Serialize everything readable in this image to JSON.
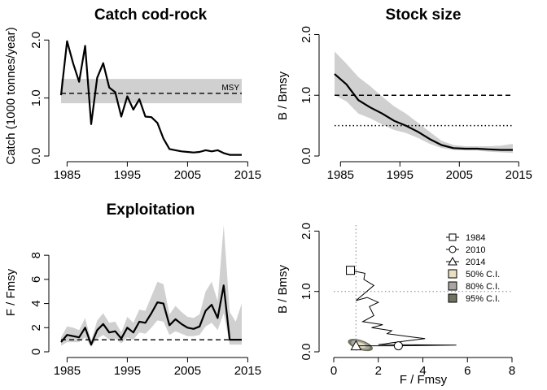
{
  "chart_data": [
    {
      "id": "catch",
      "type": "line",
      "title": "Catch cod-rock",
      "xlabel": "",
      "ylabel": "Catch (1000 tonnes/year)",
      "xlim": [
        1984,
        2014
      ],
      "ylim": [
        0,
        2.2
      ],
      "xticks": [
        "1985",
        "1995",
        "2005",
        "2015"
      ],
      "yticks": [
        "0.0",
        "1.0",
        "2.0"
      ],
      "x": [
        1984,
        1985,
        1986,
        1987,
        1988,
        1989,
        1990,
        1991,
        1992,
        1993,
        1994,
        1995,
        1996,
        1997,
        1998,
        1999,
        2000,
        2001,
        2002,
        2003,
        2004,
        2005,
        2006,
        2007,
        2008,
        2009,
        2010,
        2011,
        2012,
        2013,
        2014
      ],
      "y": [
        1.05,
        1.98,
        1.6,
        1.28,
        1.9,
        0.55,
        1.35,
        1.6,
        1.18,
        1.1,
        0.68,
        1.03,
        0.8,
        0.98,
        0.68,
        0.67,
        0.57,
        0.3,
        0.12,
        0.1,
        0.08,
        0.07,
        0.06,
        0.07,
        0.1,
        0.08,
        0.1,
        0.05,
        0.02,
        0.02,
        0.02
      ],
      "band": {
        "lo": 0.91,
        "hi": 1.33
      },
      "ref_line": {
        "y": 1.08,
        "label": "MSY"
      }
    },
    {
      "id": "stock",
      "type": "line",
      "title": "Stock size",
      "xlabel": "",
      "ylabel": "B / Bmsy",
      "xlim": [
        1984,
        2014
      ],
      "ylim": [
        0,
        2.1
      ],
      "xticks": [
        "1985",
        "1995",
        "2005",
        "2015"
      ],
      "yticks": [
        "0.0",
        "1.0",
        "2.0"
      ],
      "x": [
        1984,
        1986,
        1988,
        1990,
        1992,
        1994,
        1996,
        1998,
        2000,
        2002,
        2004,
        2006,
        2008,
        2010,
        2012,
        2014
      ],
      "y": [
        1.35,
        1.18,
        0.92,
        0.8,
        0.7,
        0.58,
        0.5,
        0.4,
        0.28,
        0.18,
        0.13,
        0.12,
        0.12,
        0.11,
        0.1,
        0.1
      ],
      "ci_lo": [
        1.0,
        0.9,
        0.7,
        0.62,
        0.52,
        0.43,
        0.38,
        0.3,
        0.2,
        0.13,
        0.1,
        0.09,
        0.09,
        0.07,
        0.06,
        0.05
      ],
      "ci_hi": [
        1.72,
        1.52,
        1.3,
        1.15,
        0.98,
        0.82,
        0.7,
        0.55,
        0.4,
        0.25,
        0.18,
        0.16,
        0.16,
        0.16,
        0.17,
        0.2
      ],
      "ref_lines": [
        {
          "y": 1.0,
          "style": "dashed"
        },
        {
          "y": 0.5,
          "style": "dotted"
        }
      ]
    },
    {
      "id": "exploitation",
      "type": "line",
      "title": "Exploitation",
      "xlabel": "",
      "ylabel": "F / Fmsy",
      "xlim": [
        1984,
        2014
      ],
      "ylim": [
        0,
        10.5
      ],
      "xticks": [
        "1985",
        "1995",
        "2005",
        "2015"
      ],
      "yticks": [
        "0",
        "2",
        "4",
        "6",
        "8"
      ],
      "x": [
        1984,
        1985,
        1986,
        1987,
        1988,
        1989,
        1990,
        1991,
        1992,
        1993,
        1994,
        1995,
        1996,
        1997,
        1998,
        1999,
        2000,
        2001,
        2002,
        2003,
        2004,
        2005,
        2006,
        2007,
        2008,
        2009,
        2010,
        2011,
        2012,
        2013,
        2014
      ],
      "y": [
        0.8,
        1.4,
        1.3,
        1.2,
        2.0,
        0.6,
        1.8,
        2.3,
        1.6,
        1.7,
        1.1,
        2.0,
        1.6,
        2.5,
        2.4,
        3.2,
        4.1,
        4.0,
        2.2,
        2.7,
        2.3,
        2.0,
        1.9,
        2.1,
        3.4,
        3.9,
        2.8,
        5.5,
        1.0,
        1.0,
        1.0
      ],
      "ci_lo": [
        0.5,
        0.8,
        0.8,
        0.8,
        1.2,
        0.4,
        1.1,
        1.4,
        1.0,
        1.1,
        0.7,
        1.2,
        1.0,
        1.6,
        1.5,
        2.0,
        2.6,
        2.5,
        1.4,
        1.7,
        1.5,
        1.3,
        1.3,
        1.4,
        2.1,
        2.4,
        1.8,
        3.2,
        0.6,
        0.6,
        0.6
      ],
      "ci_hi": [
        1.2,
        2.1,
        2.0,
        1.8,
        2.8,
        0.9,
        2.6,
        3.2,
        2.4,
        2.5,
        1.6,
        2.9,
        2.4,
        3.5,
        3.4,
        4.6,
        5.8,
        5.6,
        3.1,
        3.8,
        3.3,
        2.9,
        2.8,
        3.1,
        5.0,
        5.8,
        4.2,
        10.5,
        3.3,
        2.5,
        4.0
      ],
      "ref_line": {
        "y": 1.0,
        "style": "dashed"
      }
    },
    {
      "id": "kobe",
      "type": "scatter",
      "title": "",
      "xlabel": "F / Fmsy",
      "ylabel": "B / Bmsy",
      "xlim": [
        0,
        8
      ],
      "ylim": [
        0,
        2.1
      ],
      "xticks": [
        "0",
        "2",
        "4",
        "6",
        "8"
      ],
      "yticks": [
        "0.0",
        "1.0",
        "2.0"
      ],
      "path_F": [
        0.75,
        1.4,
        1.35,
        1.8,
        1.0,
        1.5,
        2.0,
        1.6,
        1.8,
        1.3,
        2.2,
        1.7,
        2.6,
        2.4,
        3.4,
        4.1,
        2.6,
        2.3,
        2.0,
        5.5,
        2.9,
        1.0
      ],
      "path_B": [
        1.35,
        1.3,
        1.2,
        1.1,
        0.85,
        0.9,
        0.82,
        0.75,
        0.6,
        0.5,
        0.45,
        0.4,
        0.35,
        0.3,
        0.25,
        0.22,
        0.15,
        0.13,
        0.12,
        0.11,
        0.1,
        0.1
      ],
      "ref_lines": {
        "F": 1.0,
        "B": 1.0
      },
      "markers": [
        {
          "label": "1984",
          "shape": "square",
          "F": 0.75,
          "B": 1.35
        },
        {
          "label": "2010",
          "shape": "circle",
          "F": 2.9,
          "B": 0.1
        },
        {
          "label": "2014",
          "shape": "triangle",
          "F": 1.0,
          "B": 0.1
        }
      ],
      "ci_legend": [
        {
          "label": "50% C.I.",
          "color": "#e8e0c0"
        },
        {
          "label": "80% C.I.",
          "color": "#a8a8a0"
        },
        {
          "label": "95% C.I.",
          "color": "#6f7360"
        }
      ]
    }
  ]
}
